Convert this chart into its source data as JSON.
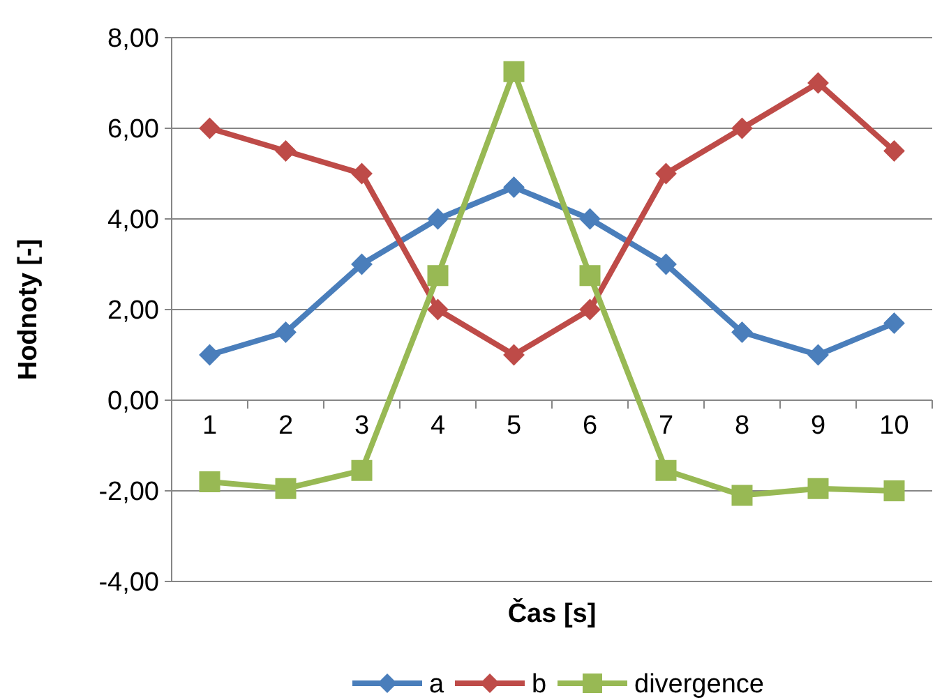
{
  "chart_data": {
    "type": "line",
    "xlabel": "Čas [s]",
    "ylabel": "Hodnoty [-]",
    "categories": [
      "1",
      "2",
      "3",
      "4",
      "5",
      "6",
      "7",
      "8",
      "9",
      "10"
    ],
    "series": [
      {
        "name": "a",
        "color": "#4a7ebb",
        "marker": "diamond",
        "values": [
          1,
          1.5,
          3,
          4,
          4.7,
          4,
          3,
          1.5,
          1,
          1.7
        ]
      },
      {
        "name": "b",
        "color": "#be4b48",
        "marker": "diamond",
        "values": [
          6,
          5.5,
          5,
          2,
          1,
          2,
          5,
          6,
          7,
          5.5
        ]
      },
      {
        "name": "divergence",
        "color": "#98b954",
        "marker": "square",
        "values": [
          -1.8,
          -1.95,
          -1.55,
          2.75,
          7.25,
          2.75,
          -1.55,
          -2.1,
          -1.95,
          -2.0
        ]
      }
    ],
    "ylim": [
      -4,
      8
    ],
    "yticks": [
      {
        "value": -4,
        "label": "-4,00"
      },
      {
        "value": -2,
        "label": "-2,00"
      },
      {
        "value": 0,
        "label": "0,00"
      },
      {
        "value": 2,
        "label": "2,00"
      },
      {
        "value": 4,
        "label": "4,00"
      },
      {
        "value": 6,
        "label": "6,00"
      },
      {
        "value": 8,
        "label": "8,00"
      }
    ],
    "grid": "y",
    "legend": "bottom",
    "line_style": "solid"
  }
}
